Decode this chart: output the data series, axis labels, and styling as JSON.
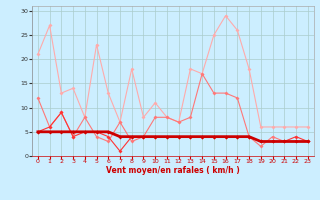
{
  "x": [
    0,
    1,
    2,
    3,
    4,
    5,
    6,
    7,
    8,
    9,
    10,
    11,
    12,
    13,
    14,
    15,
    16,
    17,
    18,
    19,
    20,
    21,
    22,
    23
  ],
  "series1": [
    21,
    27,
    13,
    14,
    8,
    23,
    13,
    7,
    18,
    8,
    11,
    8,
    7,
    18,
    17,
    25,
    29,
    26,
    18,
    6,
    6,
    6,
    6,
    6
  ],
  "series2": [
    12,
    6,
    9,
    4,
    8,
    4,
    3,
    7,
    3,
    4,
    8,
    8,
    7,
    8,
    17,
    13,
    13,
    12,
    4,
    2,
    4,
    3,
    3,
    3
  ],
  "series3": [
    5,
    6,
    9,
    4,
    5,
    5,
    4,
    1,
    4,
    4,
    4,
    4,
    4,
    4,
    4,
    4,
    4,
    4,
    4,
    3,
    3,
    3,
    4,
    3
  ],
  "series4": [
    5,
    5,
    5,
    5,
    5,
    5,
    5,
    4,
    4,
    4,
    4,
    4,
    4,
    4,
    4,
    4,
    4,
    4,
    4,
    3,
    3,
    3,
    3,
    3
  ],
  "background_color": "#cceeff",
  "grid_color": "#aacccc",
  "line_color_light1": "#ffaaaa",
  "line_color_light2": "#ff7777",
  "line_color_medium": "#ff3333",
  "line_color_dark": "#cc0000",
  "xlabel": "Vent moyen/en rafales ( km/h )",
  "ylim": [
    0,
    31
  ],
  "xlim": [
    -0.5,
    23.5
  ],
  "yticks": [
    0,
    5,
    10,
    15,
    20,
    25,
    30
  ],
  "xticks": [
    0,
    1,
    2,
    3,
    4,
    5,
    6,
    7,
    8,
    9,
    10,
    11,
    12,
    13,
    14,
    15,
    16,
    17,
    18,
    19,
    20,
    21,
    22,
    23
  ]
}
